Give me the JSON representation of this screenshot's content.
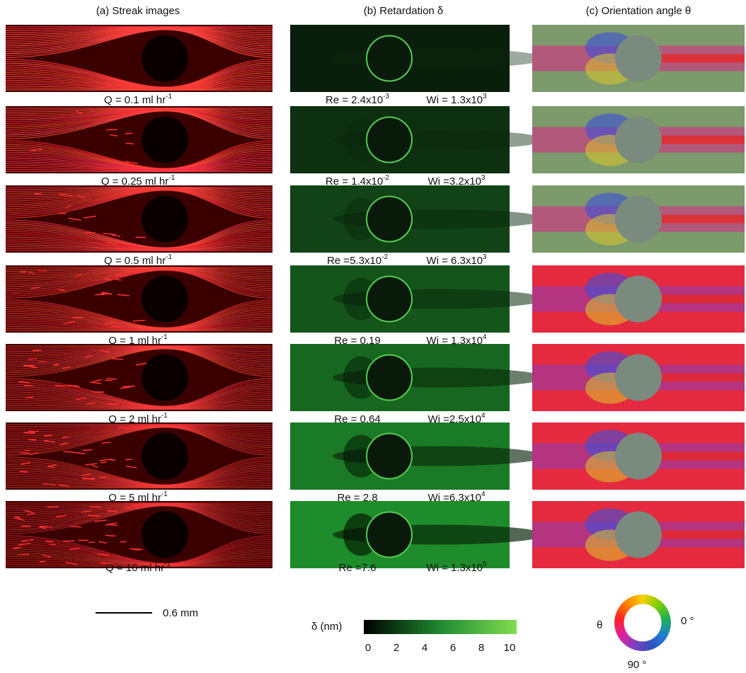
{
  "headers": [
    "(a) Streak images",
    "(b) Retardation  δ",
    "(c) Orientation angle  θ"
  ],
  "rows": [
    {
      "q": {
        "text": "Q = 0.1 ml hr",
        "sup": "-1"
      },
      "re": {
        "text": "Re = 2.4x10",
        "sup": "-3"
      },
      "wi": {
        "text": "Wi = 1.3x10",
        "sup": "3"
      }
    },
    {
      "q": {
        "text": "Q = 0.25 ml hr",
        "sup": "-1"
      },
      "re": {
        "text": "Re = 1.4x10",
        "sup": "-2"
      },
      "wi": {
        "text": "Wi =3.2x10",
        "sup": "3"
      }
    },
    {
      "q": {
        "text": "Q = 0.5 ml hr",
        "sup": "-1"
      },
      "re": {
        "text": "Re =5.3x10",
        "sup": "-2"
      },
      "wi": {
        "text": "Wi = 6.3x10",
        "sup": "3"
      }
    },
    {
      "q": {
        "text": "Q = 1 ml hr",
        "sup": "-1"
      },
      "re": {
        "text": "Re = 0.19"
      },
      "wi": {
        "text": "Wi = 1.3x10",
        "sup": "4"
      }
    },
    {
      "q": {
        "text": "Q = 2 ml hr",
        "sup": "-1"
      },
      "re": {
        "text": "Re = 0.64"
      },
      "wi": {
        "text": "Wi =2.5x10",
        "sup": "4"
      }
    },
    {
      "q": {
        "text": "Q = 5 ml hr",
        "sup": "-1"
      },
      "re": {
        "text": "Re = 2.8"
      },
      "wi": {
        "text": "Wi =6.3x10",
        "sup": "4"
      }
    },
    {
      "q": {
        "text": "Q = 10 ml hr",
        "sup": "-1"
      },
      "re": {
        "text": "Re =7.6"
      },
      "wi": {
        "text": "Wi = 1.3x10",
        "sup": "5"
      }
    }
  ],
  "scale_bar": "0.6 mm",
  "colorbar": {
    "label": "δ  (nm)",
    "ticks": [
      0,
      2,
      4,
      6,
      8,
      10
    ]
  },
  "wheel": {
    "symbol": "θ",
    "zero": "0 °",
    "ninety": "90 °"
  }
}
